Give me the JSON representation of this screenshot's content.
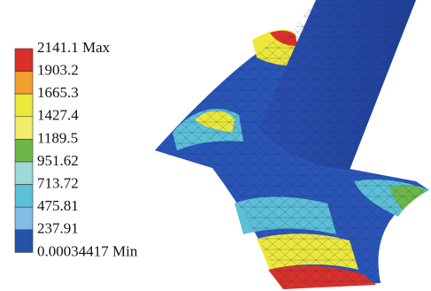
{
  "legend": {
    "labels": [
      "2141.1 Max",
      "1903.2",
      "1665.3",
      "1427.4",
      "1189.5",
      "951.62",
      "713.72",
      "475.81",
      "237.91",
      "0.00034417 Min"
    ],
    "colors": [
      "#d9302a",
      "#f0a030",
      "#ece83a",
      "#f2ec6a",
      "#6cb846",
      "#9fd8d8",
      "#5cc0d6",
      "#7fbde6",
      "#2454a8"
    ]
  }
}
